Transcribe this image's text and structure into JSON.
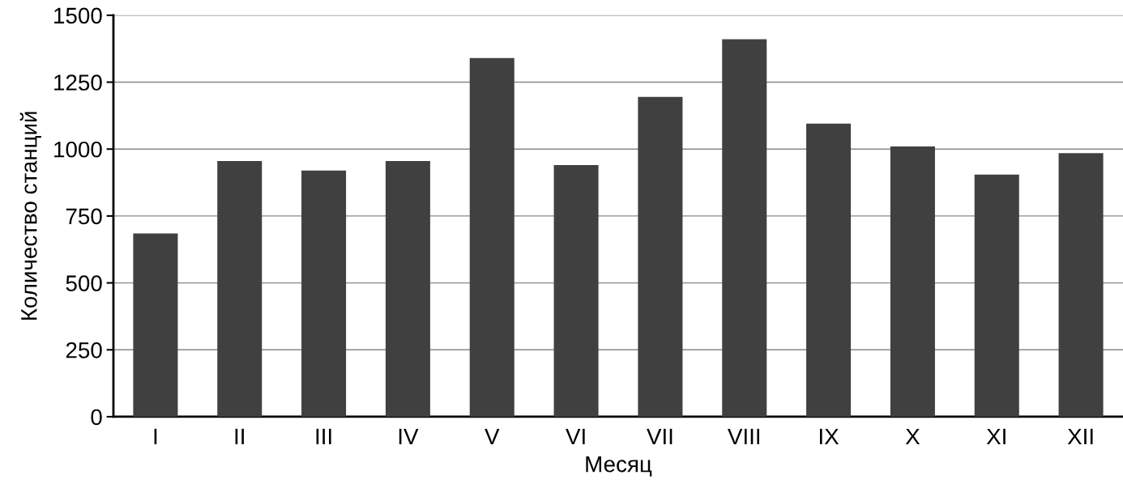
{
  "chart_data": {
    "type": "bar",
    "xlabel": "Месяц",
    "ylabel": "Количество станций",
    "categories": [
      "I",
      "II",
      "III",
      "IV",
      "V",
      "VI",
      "VII",
      "VIII",
      "IX",
      "X",
      "XI",
      "XII"
    ],
    "values": [
      685,
      955,
      920,
      955,
      1340,
      940,
      1195,
      1410,
      1095,
      1010,
      905,
      985
    ],
    "color": "#404040",
    "ylim": [
      0,
      1500
    ],
    "yticks": [
      0,
      250,
      500,
      750,
      1000,
      1250,
      1500
    ],
    "grid": "y",
    "legend": false
  }
}
